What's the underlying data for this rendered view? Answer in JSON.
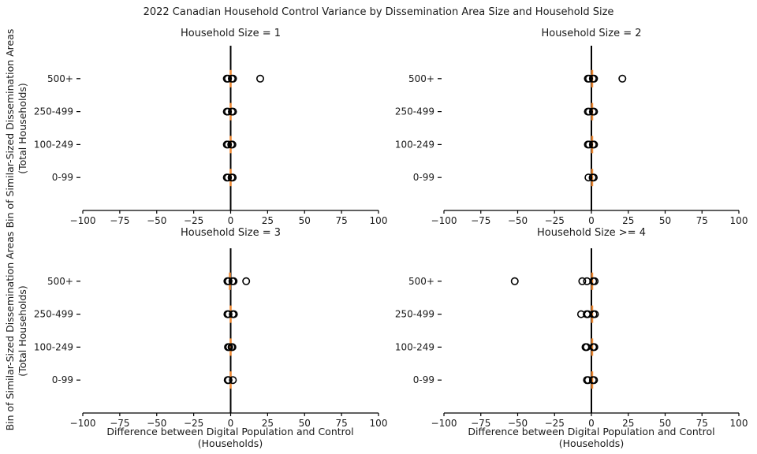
{
  "title": "2022 Canadian Household Control Variance by Dissemination Area Size and Household Size",
  "colors": {
    "control_marker": "#ee8a35",
    "point_stroke": "#000000",
    "zero_line": "#000000",
    "axis": "#000000",
    "text": "#1a1a1a"
  },
  "chart_data": {
    "type": "scatter",
    "title": "2022 Canadian Household Control Variance by Dissemination Area Size and Household Size",
    "xlabel": "Difference between Digital Population and Control (Households)",
    "ylabel_line1": "Bin of Similar-Sized Dissemination Areas",
    "ylabel_line2": "(Total Households)",
    "xlim": [
      -100,
      100
    ],
    "x_ticks": [
      -100,
      -75,
      -50,
      -25,
      0,
      25,
      50,
      75,
      100
    ],
    "categories": [
      "500+",
      "250-499",
      "100-249",
      "0-99"
    ],
    "marker": "open-circle",
    "control_marker": "orange-vertical-tick",
    "legend": "none",
    "grid": "off",
    "facets": [
      {
        "title": "Household Size = 1",
        "rows": [
          {
            "category": "500+",
            "points": [
              -2.6,
              -1.8,
              0.8,
              1.6,
              20
            ],
            "control": 0
          },
          {
            "category": "250-499",
            "points": [
              -2.6,
              -1.8,
              0.8,
              1.6
            ],
            "control": 0
          },
          {
            "category": "100-249",
            "points": [
              -2.6,
              -1.8,
              0.4,
              1.2
            ],
            "control": 0
          },
          {
            "category": "0-99",
            "points": [
              -2.6,
              -1.8,
              0.6,
              1.4
            ],
            "control": 0
          }
        ]
      },
      {
        "title": "Household Size = 2",
        "rows": [
          {
            "category": "500+",
            "points": [
              -2.4,
              -1.6,
              1.0,
              1.8,
              21
            ],
            "control": 0.5
          },
          {
            "category": "250-499",
            "points": [
              -2.4,
              -1.6,
              1.0,
              1.8
            ],
            "control": 0.5
          },
          {
            "category": "100-249",
            "points": [
              -2.4,
              -1.6,
              1.0,
              1.8
            ],
            "control": 0.5
          },
          {
            "category": "0-99",
            "points": [
              -2.0,
              0.8,
              1.6
            ],
            "control": 0.5
          }
        ]
      },
      {
        "title": "Household Size = 3",
        "rows": [
          {
            "category": "500+",
            "points": [
              -2.2,
              -1.4,
              1.2,
              2.0,
              10.5
            ],
            "control": -0.5
          },
          {
            "category": "250-499",
            "points": [
              -2.2,
              -1.4,
              1.4,
              2.2
            ],
            "control": 0
          },
          {
            "category": "100-249",
            "points": [
              -1.8,
              -1.0,
              0.6,
              1.2
            ],
            "control": 0
          },
          {
            "category": "0-99",
            "points": [
              -2.0,
              -1.4,
              1.5
            ],
            "control": 0
          }
        ]
      },
      {
        "title": "Household Size >= 4",
        "rows": [
          {
            "category": "500+",
            "points": [
              -52,
              -6.2,
              -3.0,
              1.2,
              2.2
            ],
            "control": 0.5
          },
          {
            "category": "250-499",
            "points": [
              -7.0,
              -3.2,
              -2.4,
              1.4,
              2.4
            ],
            "control": 0.5
          },
          {
            "category": "100-249",
            "points": [
              -4.0,
              -3.2,
              1.2,
              2.0
            ],
            "control": 0.5
          },
          {
            "category": "0-99",
            "points": [
              -3.0,
              -2.2,
              1.0,
              1.8
            ],
            "control": 0.5
          }
        ]
      }
    ]
  }
}
